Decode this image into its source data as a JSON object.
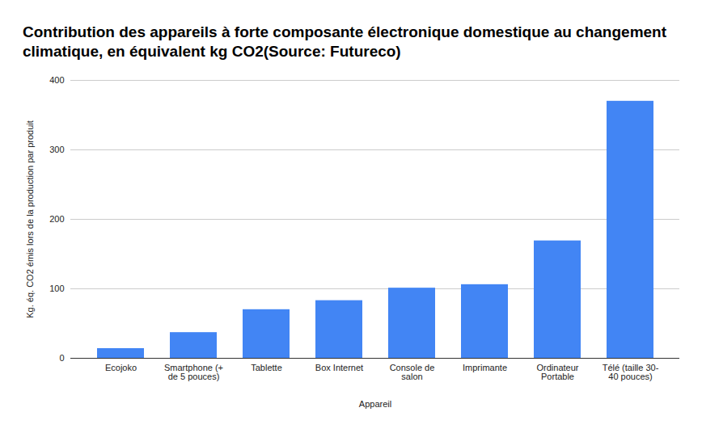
{
  "chart_data": {
    "type": "bar",
    "title": "Contribution des appareils à forte composante électronique domestique au changement climatique, en équivalent kg CO2(Source: Futureco)",
    "x_label": "Appareil",
    "y_label": "Kg. éq. CO2 émis lors de la production par produit",
    "categories": [
      "Ecojoko",
      "Smartphone (+ de 5 pouces)",
      "Tablette",
      "Box Internet",
      "Console de salon",
      "Imprimante",
      "Ordinateur Portable",
      "Télé (taille 30-40 pouces)"
    ],
    "values": [
      14,
      37,
      70,
      83,
      101,
      106,
      169,
      370
    ],
    "color": "#4285f4",
    "ylim": [
      0,
      400
    ],
    "yticks": [
      0,
      100,
      200,
      300,
      400
    ],
    "grid": true
  }
}
